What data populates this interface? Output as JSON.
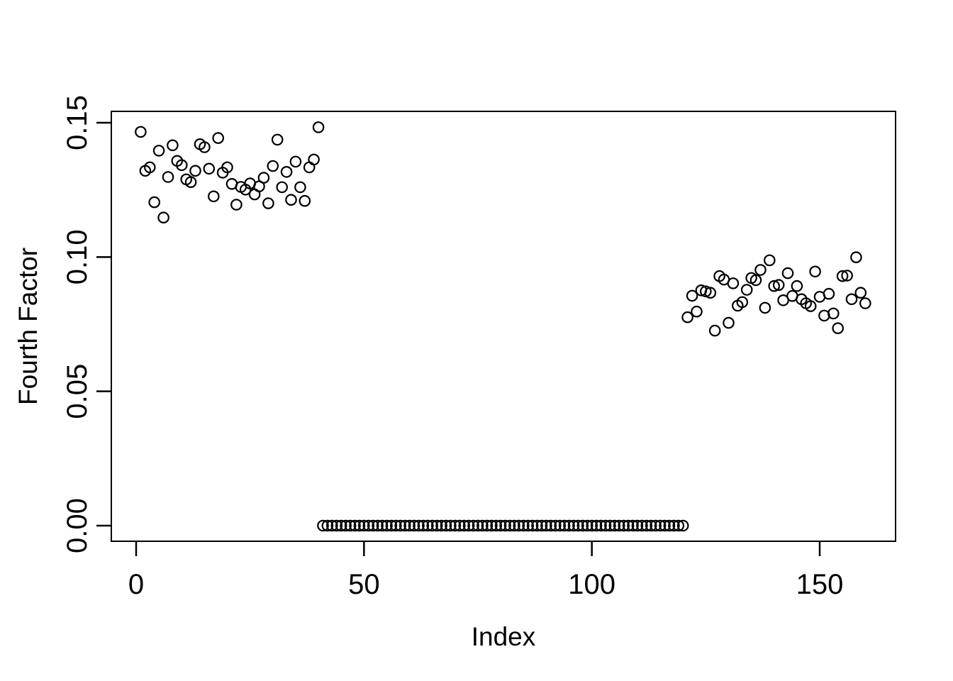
{
  "chart_data": {
    "type": "scatter",
    "title": "",
    "xlabel": "Index",
    "ylabel": "Fourth Factor",
    "marker": "open-circle",
    "marker_color": "#000000",
    "background_color": "#ffffff",
    "legend": null,
    "grid": false,
    "x_axis": {
      "ticks": [
        0,
        50,
        100,
        150
      ],
      "tick_labels": [
        "0",
        "50",
        "100",
        "150"
      ],
      "lim": [
        -5.4,
        166.4
      ]
    },
    "y_axis": {
      "ticks": [
        0,
        0.05,
        0.1,
        0.15
      ],
      "tick_labels": [
        "0.00",
        "0.05",
        "0.10",
        "0.15"
      ],
      "lim": [
        -0.006,
        0.154
      ]
    },
    "n_points": 160,
    "points": {
      "x_start": 1,
      "values": [
        0.1466,
        0.1321,
        0.1334,
        0.1204,
        0.1396,
        0.1147,
        0.1298,
        0.1416,
        0.1358,
        0.1342,
        0.1289,
        0.1279,
        0.1321,
        0.142,
        0.1409,
        0.1329,
        0.1226,
        0.1443,
        0.1314,
        0.1334,
        0.1272,
        0.1195,
        0.1261,
        0.1251,
        0.1274,
        0.1233,
        0.1263,
        0.1295,
        0.12,
        0.1339,
        0.1437,
        0.126,
        0.1317,
        0.1213,
        0.1355,
        0.126,
        0.1209,
        0.1334,
        0.1363,
        0.1483,
        0,
        0,
        0,
        0,
        0,
        0,
        0,
        0,
        0,
        0,
        0,
        0,
        0,
        0,
        0,
        0,
        0,
        0,
        0,
        0,
        0,
        0,
        0,
        0,
        0,
        0,
        0,
        0,
        0,
        0,
        0,
        0,
        0,
        0,
        0,
        0,
        0,
        0,
        0,
        0,
        0,
        0,
        0,
        0,
        0,
        0,
        0,
        0,
        0,
        0,
        0,
        0,
        0,
        0,
        0,
        0,
        0,
        0,
        0,
        0,
        0,
        0,
        0,
        0,
        0,
        0,
        0,
        0,
        0,
        0,
        0,
        0,
        0,
        0,
        0,
        0,
        0,
        0,
        0,
        0,
        0.0776,
        0.0856,
        0.0797,
        0.0876,
        0.0872,
        0.0867,
        0.0726,
        0.0929,
        0.0916,
        0.0755,
        0.0902,
        0.0819,
        0.0832,
        0.0878,
        0.0922,
        0.0914,
        0.0952,
        0.0811,
        0.0988,
        0.0892,
        0.0896,
        0.0839,
        0.094,
        0.0855,
        0.0892,
        0.0843,
        0.0828,
        0.0817,
        0.0946,
        0.0852,
        0.0782,
        0.0863,
        0.079,
        0.0735,
        0.0929,
        0.0931,
        0.0843,
        0.0999,
        0.0867,
        0.0828
      ]
    }
  }
}
